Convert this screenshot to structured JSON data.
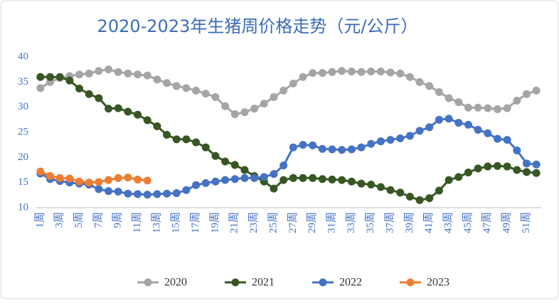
{
  "chart_data": {
    "type": "line",
    "title": "2020-2023年生猪周价格走势（元/公斤）",
    "categories": [
      "1周",
      null,
      "3周",
      null,
      "5周",
      null,
      "7周",
      null,
      "9周",
      null,
      "11周",
      null,
      "13周",
      null,
      "15周",
      null,
      "17周",
      null,
      "19周",
      null,
      "21周",
      null,
      "23周",
      null,
      "25周",
      null,
      "27周",
      null,
      "29周",
      null,
      "31周",
      null,
      "33周",
      null,
      "35周",
      null,
      "37周",
      null,
      "39周",
      null,
      "41周",
      null,
      "43周",
      null,
      "45周",
      null,
      "47周",
      null,
      "49周",
      null,
      "51周",
      null
    ],
    "series": [
      {
        "name": "2020",
        "color": "#a5a5a5",
        "values": [
          33.8,
          35,
          35.8,
          36.2,
          36.5,
          36.7,
          37.2,
          37.5,
          37,
          36.7,
          36.5,
          36.3,
          35.5,
          34.8,
          34.2,
          33.8,
          33.3,
          32.7,
          32,
          30.2,
          28.6,
          29,
          29.7,
          30.7,
          32,
          33.3,
          34.7,
          36,
          36.8,
          36.8,
          37,
          37.2,
          37.1,
          37,
          37.1,
          37.1,
          36.9,
          36.7,
          36,
          35,
          34.2,
          33,
          31.8,
          31,
          29.9,
          29.9,
          29.8,
          29.6,
          29.8,
          31.3,
          32.6,
          33.3
        ]
      },
      {
        "name": "2021",
        "color": "#375623",
        "values": [
          36,
          36,
          36,
          35.3,
          33.7,
          32.6,
          31.8,
          29.7,
          29.8,
          29.1,
          28.5,
          27.4,
          26.2,
          24.5,
          23.6,
          23.6,
          23,
          22,
          20.3,
          19.2,
          18.5,
          17.5,
          16.3,
          15.2,
          13.8,
          15.5,
          15.9,
          15.9,
          15.9,
          15.7,
          15.6,
          15.5,
          15.2,
          14.8,
          14.6,
          14.1,
          13.5,
          13,
          12.2,
          11.5,
          11.9,
          13.4,
          15.5,
          16.1,
          17,
          17.8,
          18.2,
          18.3,
          18.2,
          17.5,
          17.1,
          16.9
        ]
      },
      {
        "name": "2022",
        "color": "#4472c4",
        "values": [
          16.8,
          15.7,
          15.3,
          15,
          14.8,
          14.6,
          13.7,
          13.3,
          13.2,
          12.8,
          12.7,
          12.6,
          12.7,
          12.8,
          12.9,
          13.5,
          14.5,
          14.9,
          15.2,
          15.5,
          15.7,
          15.9,
          15.9,
          16.1,
          16.7,
          18.4,
          22,
          22.5,
          22.4,
          21.7,
          21.6,
          21.5,
          21.6,
          22,
          22.7,
          23.2,
          23.5,
          23.8,
          24.3,
          25.3,
          26,
          27.5,
          27.7,
          26.9,
          26.5,
          25.5,
          24.8,
          23.7,
          23.5,
          21.4,
          18.8,
          18.6
        ]
      },
      {
        "name": "2023",
        "color": "#ed7d31",
        "values": [
          17.2,
          16.3,
          15.9,
          15.8,
          15.2,
          15,
          15.1,
          15.5,
          15.9,
          16,
          15.6,
          15.4,
          null,
          null,
          null,
          null,
          null,
          null,
          null,
          null,
          null,
          null,
          null,
          null,
          null,
          null,
          null,
          null,
          null,
          null,
          null,
          null,
          null,
          null,
          null,
          null,
          null,
          null,
          null,
          null,
          null,
          null,
          null,
          null,
          null,
          null,
          null,
          null,
          null,
          null,
          null,
          null
        ]
      }
    ],
    "ylim": [
      10,
      40
    ],
    "yticks": [
      10,
      15,
      20,
      25,
      30,
      35,
      40
    ],
    "grid": false,
    "legend": "bottom"
  }
}
